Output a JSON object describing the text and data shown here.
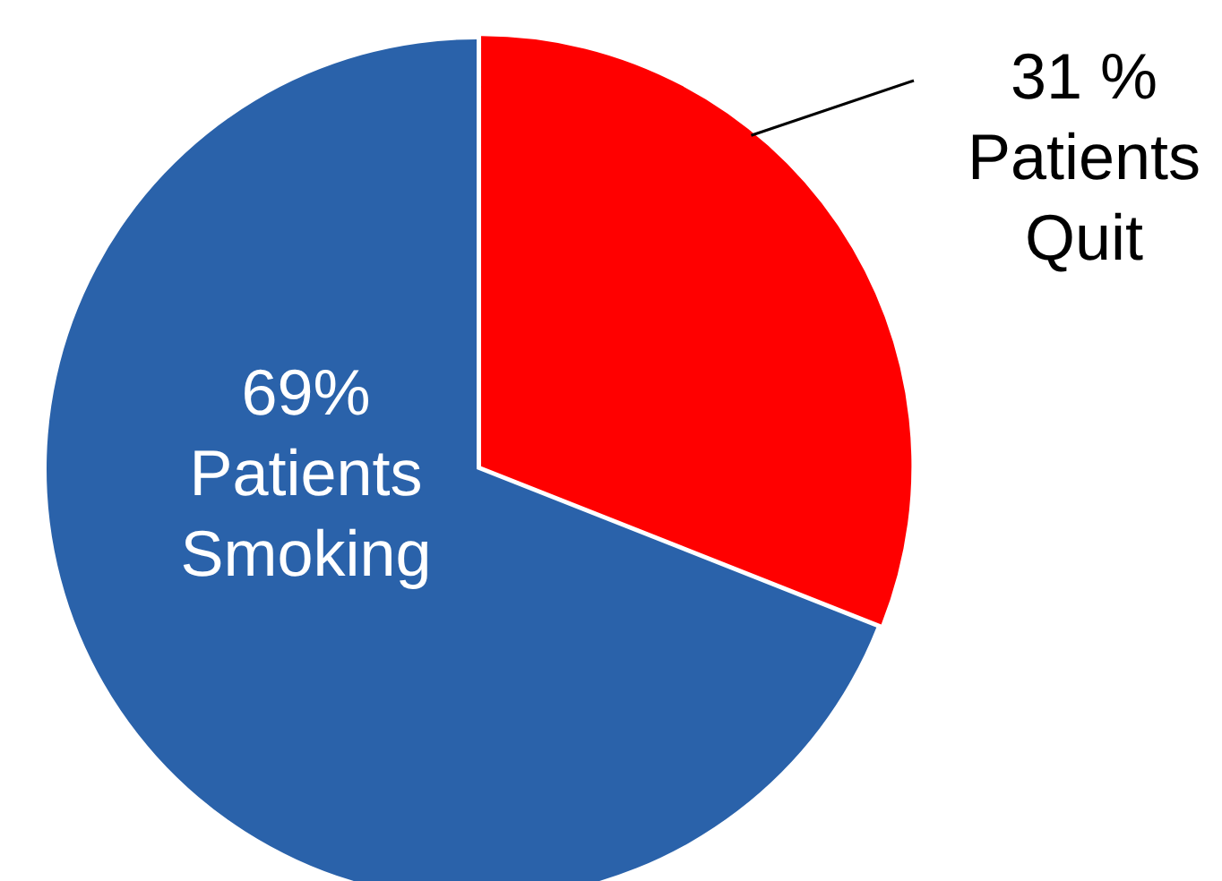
{
  "chart_data": {
    "type": "pie",
    "categories": [
      "Patients Quit",
      "Patients Smoking"
    ],
    "values": [
      31,
      69
    ],
    "value_labels": [
      "31 %",
      "69%"
    ],
    "colors": [
      "#ff0000",
      "#2a62aa"
    ],
    "legend": false
  }
}
